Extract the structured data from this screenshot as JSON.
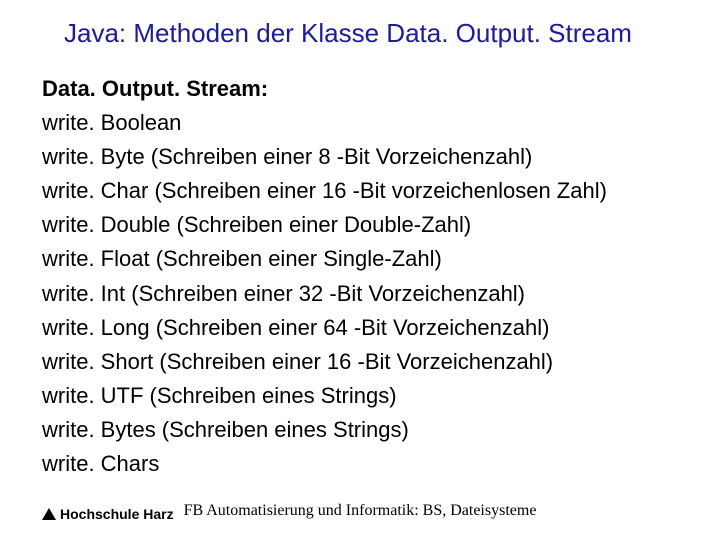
{
  "title": "Java: Methoden der Klasse Data. Output. Stream",
  "subtitle": "Data. Output. Stream:",
  "methods": [
    "write. Boolean",
    "write. Byte (Schreiben einer 8 -Bit Vorzeichenzahl)",
    "write. Char (Schreiben einer 16 -Bit vorzeichenlosen Zahl)",
    "write. Double (Schreiben einer Double-Zahl)",
    "write. Float (Schreiben einer Single-Zahl)",
    "write. Int (Schreiben einer 32 -Bit Vorzeichenzahl)",
    "write. Long (Schreiben einer 64 -Bit Vorzeichenzahl)",
    "write. Short (Schreiben einer 16 -Bit Vorzeichenzahl)",
    "write. UTF (Schreiben eines Strings)",
    "write. Bytes (Schreiben eines Strings)",
    "write. Chars"
  ],
  "footer": "FB Automatisierung und Informatik: BS, Dateisysteme",
  "logo_text": "Hochschule Harz",
  "colors": {
    "title": "#1b1b9c",
    "text": "#000000",
    "background": "#ffffff"
  },
  "fonts": {
    "title_size": 26,
    "body_size": 22,
    "footer_size": 16
  }
}
